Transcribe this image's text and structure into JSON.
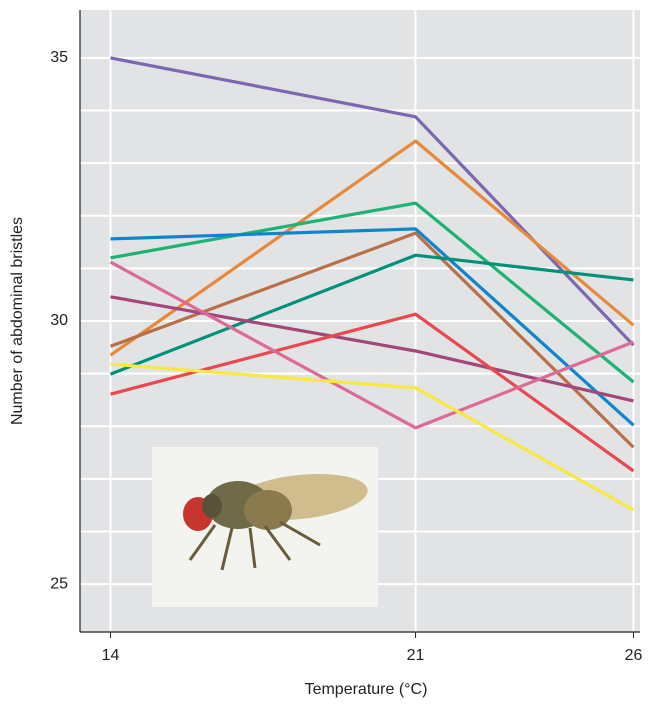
{
  "chart_data": {
    "type": "line",
    "x_label": "Temperature (°C)",
    "y_label": "Number of abdominal bristles",
    "x": [
      14,
      21,
      26
    ],
    "xlim": [
      13.3,
      26.15
    ],
    "xticks": [
      14,
      21,
      26
    ],
    "ylim": [
      24.09,
      35.91
    ],
    "yticks": [
      25,
      30,
      35
    ],
    "y_minor_ticks": [
      26,
      27,
      28,
      29,
      31,
      32,
      33,
      34
    ],
    "grid": true,
    "series": [
      {
        "color": "#7b68b0",
        "values": [
          35.0,
          33.88,
          29.54
        ]
      },
      {
        "color": "#e8893a",
        "values": [
          29.35,
          33.42,
          29.92
        ]
      },
      {
        "color": "#1db374",
        "values": [
          31.2,
          32.24,
          28.84
        ]
      },
      {
        "color": "#0f86cc",
        "values": [
          31.56,
          31.75,
          28.02
        ]
      },
      {
        "color": "#b87048",
        "values": [
          29.52,
          31.67,
          27.6
        ]
      },
      {
        "color": "#00917a",
        "values": [
          28.99,
          31.25,
          30.78
        ]
      },
      {
        "color": "#a3467a",
        "values": [
          30.46,
          29.43,
          28.48
        ]
      },
      {
        "color": "#e8484e",
        "values": [
          28.61,
          30.13,
          27.15
        ]
      },
      {
        "color": "#dc6a94",
        "values": [
          31.12,
          27.97,
          29.6
        ]
      },
      {
        "color": "#f7e843",
        "values": [
          29.18,
          28.73,
          26.41
        ]
      }
    ]
  }
}
